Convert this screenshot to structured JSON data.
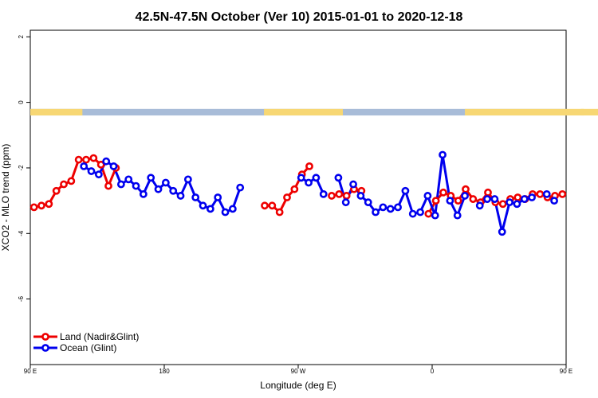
{
  "chart_data": {
    "type": "line",
    "title": "42.5N-47.5N October (Ver 10)   2015-01-01 to 2020-12-18",
    "xlabel": "Longitude (deg E)",
    "ylabel": "XCO2 - MLO trend (ppm)",
    "xlim": [
      90,
      450
    ],
    "ylim": [
      -8,
      2.2
    ],
    "x_ticks": [
      {
        "value": 90,
        "label": "90 E"
      },
      {
        "value": 180,
        "label": "180"
      },
      {
        "value": 270,
        "label": "90 W"
      },
      {
        "value": 360,
        "label": "0"
      },
      {
        "value": 450,
        "label": "90 E"
      },
      {
        "value": 540,
        "label": "180"
      }
    ],
    "y_ticks": [
      {
        "value": 2,
        "label": "2"
      },
      {
        "value": 0,
        "label": "0"
      },
      {
        "value": -2,
        "label": "-2"
      },
      {
        "value": -4,
        "label": "-4"
      },
      {
        "value": -6,
        "label": "-6"
      }
    ],
    "grid": false,
    "legend_position": "bottom-left",
    "landmask_band": {
      "y_top": -0.2,
      "y_bottom": -0.4,
      "land_color": "#f7d774",
      "ocean_color": "#a8bcd8"
    },
    "series": [
      {
        "name": "Land (Nadir&Glint)",
        "color": "#ee0000",
        "segments": [
          {
            "x": [
              92.5,
              97.5,
              102.5,
              107.5,
              112.5,
              117.5,
              122.5,
              127.5,
              132.5,
              137.5,
              142.5,
              147.5,
              152.5,
              157.5
            ],
            "y": [
              -3.2,
              -3.15,
              -3.1,
              -2.7,
              -2.5,
              -2.4,
              -1.75,
              -1.75,
              -1.7,
              -1.9,
              -2.55,
              -2.0,
              null,
              null
            ]
          },
          {
            "x": [
              247.5,
              252.5,
              257.5,
              262.5,
              267.5,
              272.5,
              277.5
            ],
            "y": [
              -3.15,
              -3.15,
              -3.35,
              -2.9,
              -2.65,
              -2.2,
              -1.95
            ]
          },
          {
            "x": [
              282.5,
              287.5,
              292.5,
              297.5,
              302.5,
              307.5,
              312.5
            ],
            "y": [
              null,
              null,
              -2.85,
              -2.8,
              -2.85,
              -2.65,
              -2.7
            ]
          },
          {
            "x": [
              357.5,
              362.5,
              367.5,
              372.5,
              377.5,
              382.5,
              387.5,
              392.5,
              397.5,
              402.5,
              407.5,
              412.5,
              417.5,
              422.5,
              427.5,
              432.5,
              437.5,
              442.5,
              447.5,
              452.5,
              457.5,
              462.5,
              467.5,
              472.5,
              477.5,
              482.5,
              487.5,
              492.5,
              497.5,
              502.5
            ],
            "y": [
              -3.4,
              -3.0,
              -2.75,
              -2.85,
              -3.0,
              -2.65,
              -2.95,
              -3.05,
              -2.75,
              -3.05,
              -3.1,
              -2.95,
              -2.9,
              -2.95,
              -2.8,
              -2.8,
              -2.9,
              -2.85,
              -2.8,
              -3.2,
              -3.1,
              -3.05,
              -2.7,
              -2.5,
              -2.4,
              -1.75,
              -1.75,
              -1.7,
              -1.9,
              -2.55
            ]
          },
          {
            "x": [
              502.5,
              507.5
            ],
            "y": [
              -2.55,
              -1.95
            ]
          }
        ]
      },
      {
        "name": "Ocean (Glint)",
        "color": "#0000ee",
        "segments": [
          {
            "x": [
              126,
              131,
              136,
              141,
              146,
              151,
              156,
              161,
              166,
              171,
              176,
              181,
              186,
              191,
              196,
              201,
              206,
              211,
              216,
              221,
              226,
              231,
              236,
              241,
              246
            ],
            "y": [
              -1.95,
              -2.1,
              -2.2,
              -1.8,
              -1.95,
              -2.5,
              -2.35,
              -2.55,
              -2.8,
              -2.3,
              -2.65,
              -2.45,
              -2.7,
              -2.85,
              -2.35,
              -2.9,
              -3.15,
              -3.25,
              -2.9,
              -3.35,
              -3.25,
              -2.6,
              null,
              null,
              null
            ]
          },
          {
            "x": [
              272,
              277,
              282,
              287,
              292,
              297,
              302,
              307,
              312,
              317,
              322,
              327,
              332,
              337,
              342,
              347,
              352,
              357,
              362,
              367,
              372,
              377,
              382,
              387,
              392,
              397,
              402,
              407,
              412,
              417,
              422,
              427,
              432,
              437,
              442,
              447
            ],
            "y": [
              -2.3,
              -2.45,
              -2.3,
              -2.8,
              null,
              -2.3,
              -3.05,
              -2.5,
              -2.85,
              -3.05,
              -3.35,
              -3.2,
              -3.25,
              -3.2,
              -2.7,
              -3.4,
              -3.35,
              -2.85,
              -3.45,
              -1.6,
              -3.0,
              -3.45,
              -2.85,
              null,
              -3.15,
              -2.95,
              -2.95,
              -3.95,
              -3.05,
              -3.1,
              -2.95,
              -2.9,
              null,
              -2.8,
              -3.0,
              null
            ]
          },
          {
            "x": [
              497,
              502,
              507,
              512,
              517,
              522,
              527,
              532,
              537,
              542,
              547
            ],
            "y": [
              -1.95,
              -2.1,
              -2.2,
              -1.8,
              -1.95,
              -2.5,
              -2.35,
              -2.55,
              -2.8,
              -2.3,
              -2.65
            ]
          }
        ]
      }
    ]
  }
}
